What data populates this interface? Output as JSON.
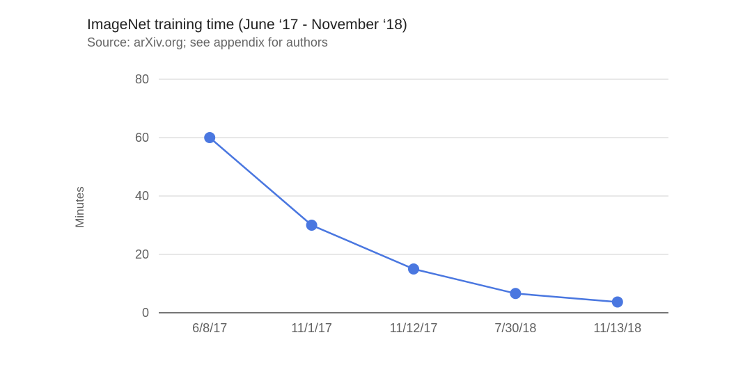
{
  "chart_data": {
    "type": "line",
    "title": "ImageNet training time (June ‘17 - November ‘18)",
    "subtitle": "Source: arXiv.org; see appendix for authors",
    "xlabel": "",
    "ylabel": "Minutes",
    "categories": [
      "6/8/17",
      "11/1/17",
      "11/12/17",
      "7/30/18",
      "11/13/18"
    ],
    "values": [
      60,
      30,
      15,
      6.6,
      3.7
    ],
    "ylim": [
      0,
      80
    ],
    "yticks": [
      0,
      20,
      40,
      60,
      80
    ],
    "grid": true,
    "legend": "none",
    "colors": {
      "line": "#4a77e0",
      "point": "#4a77e0",
      "grid": "#e0e0e0",
      "axis": "#757575"
    }
  }
}
